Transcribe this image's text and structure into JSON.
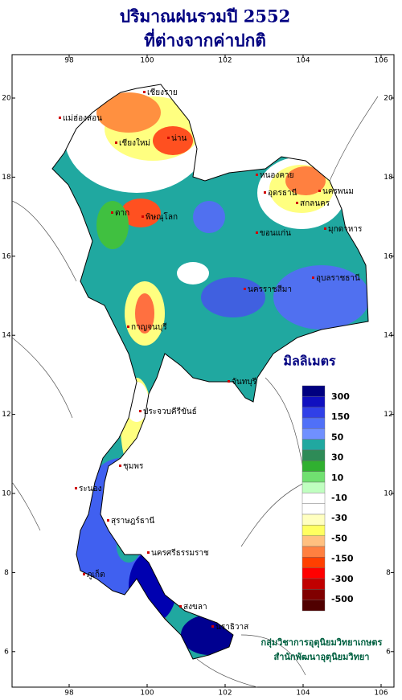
{
  "header": {
    "title": [
      "ปริมาณฝนรวมปี 2552",
      "ที่ต่างจากค่าปกติ"
    ]
  },
  "map": {
    "xticks": [
      98,
      100,
      102,
      104,
      106
    ],
    "yticks": [
      20,
      18,
      16,
      14,
      12,
      10,
      8,
      6
    ]
  },
  "places": [
    "เชียงราย",
    "แม่ฮ่องสอน",
    "เชียงใหม่",
    "น่าน",
    "หนองคาย",
    "อุดรธานี",
    "สกลนคร",
    "นครพนม",
    "มุกดาหาร",
    "ตาก",
    "พิษณุโลก",
    "ขอนแก่น",
    "อุบลราชธานี",
    "นครราชสีมา",
    "กาญจนบุรี",
    "จันทบุรี",
    "ประจวบคีรีขันธ์",
    "ชุมพร",
    "ระนอง",
    "สุราษฎร์ธานี",
    "นครศรีธรรมราช",
    "ภูเก็ต",
    "สงขลา",
    "นราธิวาส"
  ],
  "legend": {
    "title": "มิลลิเมตร",
    "colors": [
      "#000080",
      "#1010c0",
      "#3040e8",
      "#5070f8",
      "#7090ff",
      "#20a8a0",
      "#2e8b57",
      "#30b030",
      "#70e070",
      "#c0ffc0",
      "#ffffff",
      "#ffffff",
      "#ffffc0",
      "#ffff60",
      "#ffc080",
      "#ff8040",
      "#ff4000",
      "#ff0000",
      "#c00000",
      "#800000",
      "#500000"
    ],
    "labels": [
      "300",
      "150",
      "50",
      "30",
      "10",
      "-10",
      "-30",
      "-50",
      "-150",
      "-300",
      "-500"
    ]
  },
  "footer": [
    "กลุ่มวิชาการอุตุนิยมวิทยาเกษตร",
    "สำนักพัฒนาอุตุนิยมวิทยา"
  ]
}
